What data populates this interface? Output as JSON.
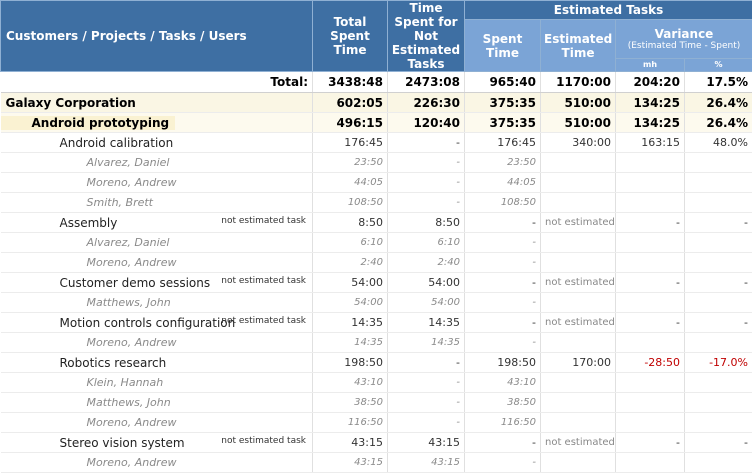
{
  "header": {
    "entity": "Customers / Projects / Tasks / Users",
    "total_spent": "Total Spent Time",
    "not_estimated": "Time Spent for Not Estimated Tasks",
    "estimated_tasks": "Estimated Tasks",
    "spent_time": "Spent Time",
    "estimated_time": "Estimated Time",
    "variance": "Variance",
    "variance_sub": "(Estimated Time - Spent)",
    "mh": "mh",
    "pct": "%"
  },
  "total": {
    "label": "Total:",
    "v1": "3438:48",
    "v2": "2473:08",
    "v3": "965:40",
    "v4": "1170:00",
    "v5": "204:20",
    "v6": "17.5%"
  },
  "customer": {
    "label": "Galaxy Corporation",
    "v1": "602:05",
    "v2": "226:30",
    "v3": "375:35",
    "v4": "510:00",
    "v5": "134:25",
    "v6": "26.4%"
  },
  "project": {
    "label": "Android prototyping",
    "v1": "496:15",
    "v2": "120:40",
    "v3": "375:35",
    "v4": "510:00",
    "v5": "134:25",
    "v6": "26.4%"
  },
  "rows": [
    {
      "kind": "task",
      "label": "Android calibration",
      "note": "",
      "v1": "176:45",
      "v2": "-",
      "v3": "176:45",
      "v4": "340:00",
      "v5": "163:15",
      "v6": "48.0%",
      "neg": false
    },
    {
      "kind": "user",
      "label": "Alvarez, Daniel",
      "note": "",
      "v1": "23:50",
      "v2": "-",
      "v3": "23:50",
      "v4": "",
      "v5": "",
      "v6": "",
      "neg": false
    },
    {
      "kind": "user",
      "label": "Moreno, Andrew",
      "note": "",
      "v1": "44:05",
      "v2": "-",
      "v3": "44:05",
      "v4": "",
      "v5": "",
      "v6": "",
      "neg": false
    },
    {
      "kind": "user",
      "label": "Smith, Brett",
      "note": "",
      "v1": "108:50",
      "v2": "-",
      "v3": "108:50",
      "v4": "",
      "v5": "",
      "v6": "",
      "neg": false
    },
    {
      "kind": "task",
      "label": "Assembly",
      "note": "not estimated task",
      "v1": "8:50",
      "v2": "8:50",
      "v3": "-",
      "v4": "not estimated",
      "v5": "-",
      "v6": "-",
      "neg": false
    },
    {
      "kind": "user",
      "label": "Alvarez, Daniel",
      "note": "",
      "v1": "6:10",
      "v2": "6:10",
      "v3": "-",
      "v4": "",
      "v5": "",
      "v6": "",
      "neg": false
    },
    {
      "kind": "user",
      "label": "Moreno, Andrew",
      "note": "",
      "v1": "2:40",
      "v2": "2:40",
      "v3": "-",
      "v4": "",
      "v5": "",
      "v6": "",
      "neg": false
    },
    {
      "kind": "task",
      "label": "Customer demo sessions",
      "note": "not estimated task",
      "v1": "54:00",
      "v2": "54:00",
      "v3": "-",
      "v4": "not estimated",
      "v5": "-",
      "v6": "-",
      "neg": false
    },
    {
      "kind": "user",
      "label": "Matthews, John",
      "note": "",
      "v1": "54:00",
      "v2": "54:00",
      "v3": "-",
      "v4": "",
      "v5": "",
      "v6": "",
      "neg": false
    },
    {
      "kind": "task",
      "label": "Motion controls configuration",
      "note": "not estimated task",
      "v1": "14:35",
      "v2": "14:35",
      "v3": "-",
      "v4": "not estimated",
      "v5": "-",
      "v6": "-",
      "neg": false
    },
    {
      "kind": "user",
      "label": "Moreno, Andrew",
      "note": "",
      "v1": "14:35",
      "v2": "14:35",
      "v3": "-",
      "v4": "",
      "v5": "",
      "v6": "",
      "neg": false
    },
    {
      "kind": "task",
      "label": "Robotics research",
      "note": "",
      "v1": "198:50",
      "v2": "-",
      "v3": "198:50",
      "v4": "170:00",
      "v5": "-28:50",
      "v6": "-17.0%",
      "neg": true
    },
    {
      "kind": "user",
      "label": "Klein, Hannah",
      "note": "",
      "v1": "43:10",
      "v2": "-",
      "v3": "43:10",
      "v4": "",
      "v5": "",
      "v6": "",
      "neg": false
    },
    {
      "kind": "user",
      "label": "Matthews, John",
      "note": "",
      "v1": "38:50",
      "v2": "-",
      "v3": "38:50",
      "v4": "",
      "v5": "",
      "v6": "",
      "neg": false
    },
    {
      "kind": "user",
      "label": "Moreno, Andrew",
      "note": "",
      "v1": "116:50",
      "v2": "-",
      "v3": "116:50",
      "v4": "",
      "v5": "",
      "v6": "",
      "neg": false
    },
    {
      "kind": "task",
      "label": "Stereo vision system",
      "note": "not estimated task",
      "v1": "43:15",
      "v2": "43:15",
      "v3": "-",
      "v4": "not estimated",
      "v5": "-",
      "v6": "-",
      "neg": false
    },
    {
      "kind": "user",
      "label": "Moreno, Andrew",
      "note": "",
      "v1": "43:15",
      "v2": "43:15",
      "v3": "-",
      "v4": "",
      "v5": "",
      "v6": "",
      "neg": false
    }
  ]
}
